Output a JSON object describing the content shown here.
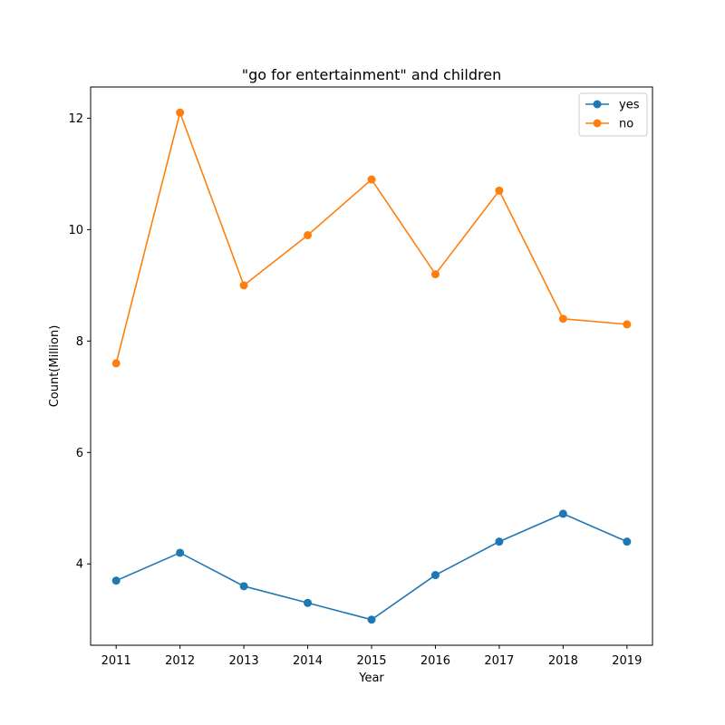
{
  "chart_data": {
    "type": "line",
    "title": "\"go for entertainment\" and children",
    "xlabel": "Year",
    "ylabel": "Count(Million)",
    "x": [
      2011,
      2012,
      2013,
      2014,
      2015,
      2016,
      2017,
      2018,
      2019
    ],
    "y_ticks": [
      4,
      6,
      8,
      10,
      12
    ],
    "ylim": [
      2.54,
      12.56
    ],
    "grid": false,
    "legend_position": "top-right",
    "series": [
      {
        "name": "yes",
        "color": "#1f77b4",
        "values": [
          3.7,
          4.2,
          3.6,
          3.3,
          3.0,
          3.8,
          4.4,
          4.9,
          4.4
        ]
      },
      {
        "name": "no",
        "color": "#ff7f0e",
        "values": [
          7.6,
          12.1,
          9.0,
          9.9,
          10.9,
          9.2,
          10.7,
          8.4,
          8.3
        ]
      }
    ]
  }
}
